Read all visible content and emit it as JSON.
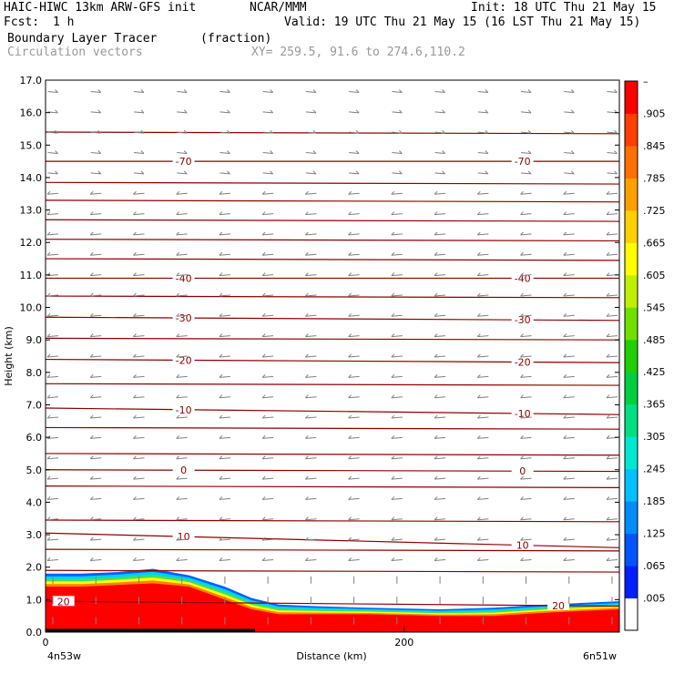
{
  "header": {
    "model": "HAIC-HIWC 13km ARW-GFS init",
    "org": "NCAR/MMM",
    "init": "Init: 18 UTC Thu 21 May 15",
    "fcst_label": "Fcst:",
    "fcst_value": "1 h",
    "valid": "Valid: 19 UTC Thu 21 May 15 (16 LST Thu 21 May 15)",
    "field": "Boundary Layer Tracer",
    "units": "(fraction)",
    "overlay": "Circulation vectors",
    "xy": "XY= 259.5, 91.6 to 274.6,110.2"
  },
  "axes": {
    "ylabel": "Height (km)",
    "xlabel": "Distance (km)",
    "left_end": "4n53w",
    "right_end": "6n51w"
  },
  "colors": {
    "contour": "#8b0000",
    "vector": "#808080",
    "tracer_high": "#ff0000"
  },
  "colorbar": {
    "labels": [
      "–",
      ".905",
      ".845",
      ".785",
      ".725",
      ".665",
      ".605",
      ".545",
      ".485",
      ".425",
      ".365",
      ".305",
      ".245",
      ".185",
      ".125",
      ".065",
      ".005"
    ],
    "colors": [
      "#ffffff",
      "#0020ff",
      "#0055ff",
      "#008cff",
      "#00c0ff",
      "#00e8d0",
      "#00e080",
      "#00d040",
      "#20d000",
      "#70e000",
      "#c0f000",
      "#ffff00",
      "#ffd000",
      "#ffa000",
      "#ff7000",
      "#ff4000",
      "#ff0000"
    ]
  },
  "chart_data": {
    "type": "cross-section",
    "title": "Boundary Layer Tracer",
    "xlabel": "Distance (km)",
    "ylabel": "Height (km)",
    "xlim": [
      0,
      320
    ],
    "ylim": [
      0,
      17
    ],
    "x_ticks": [
      0,
      200
    ],
    "y_ticks": [
      "0.0",
      "1.0",
      "2.0",
      "3.0",
      "4.0",
      "5.0",
      "6.0",
      "7.0",
      "8.0",
      "9.0",
      "10.0",
      "11.0",
      "12.0",
      "13.0",
      "14.0",
      "15.0",
      "16.0",
      "17.0"
    ],
    "temperature_contours": [
      {
        "label": "20",
        "y_left": 0.95,
        "y_right": 0.8,
        "label_x": [
          10,
          286
        ]
      },
      {
        "label": "10",
        "y_left": 3.05,
        "y_right": 2.6,
        "label_x": [
          77,
          266
        ]
      },
      {
        "label": "0",
        "y_left": 5.0,
        "y_right": 4.95,
        "label_x": [
          77,
          266
        ]
      },
      {
        "label": "-10",
        "y_left": 6.9,
        "y_right": 6.7,
        "label_x": [
          77,
          266
        ]
      },
      {
        "label": "-20",
        "y_left": 8.4,
        "y_right": 8.3,
        "label_x": [
          77,
          266
        ]
      },
      {
        "label": "-30",
        "y_left": 9.7,
        "y_right": 9.6,
        "label_x": [
          77,
          266
        ]
      },
      {
        "label": "-40",
        "y_left": 10.9,
        "y_right": 10.9,
        "label_x": [
          77,
          266
        ]
      },
      {
        "label": "-70",
        "y_left": 14.5,
        "y_right": 14.5,
        "label_x": [
          77,
          266
        ]
      }
    ],
    "unlabeled_contour_heights": [
      1.9,
      2.55,
      3.45,
      4.5,
      5.5,
      6.3,
      7.65,
      9.05,
      10.35,
      11.5,
      12.1,
      12.7,
      13.3,
      13.85,
      15.4
    ],
    "tracer_layer": {
      "x_km": [
        0,
        20,
        40,
        60,
        70,
        80,
        100,
        115,
        130,
        150,
        180,
        220,
        250,
        280,
        320
      ],
      "top_km": [
        1.8,
        1.8,
        1.85,
        1.95,
        1.85,
        1.75,
        1.4,
        1.05,
        0.85,
        0.8,
        0.75,
        0.7,
        0.75,
        0.85,
        0.95
      ],
      "core_top_km": [
        1.4,
        1.4,
        1.45,
        1.5,
        1.45,
        1.4,
        1.0,
        0.7,
        0.55,
        0.55,
        0.55,
        0.5,
        0.5,
        0.6,
        0.7
      ],
      "value_core": 1.0
    },
    "vector_wind": {
      "upper_dir_deg": 0,
      "mid_dir_deg": 180,
      "columns": 14,
      "rows": 27
    }
  }
}
